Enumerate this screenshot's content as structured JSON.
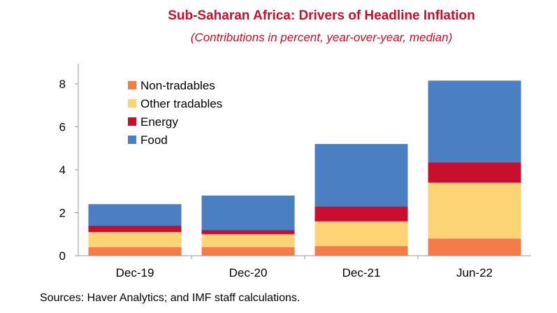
{
  "chart_data": {
    "type": "bar",
    "stacked": true,
    "title": "Sub-Saharan Africa: Drivers of Headline Inflation",
    "subtitle": "(Contributions in percent, year-over-year, median)",
    "categories": [
      "Dec-19",
      "Dec-20",
      "Dec-21",
      "Jun-22"
    ],
    "series": [
      {
        "name": "Non-tradables",
        "color": "#f47c48",
        "values": [
          0.4,
          0.4,
          0.45,
          0.8
        ]
      },
      {
        "name": "Other tradables",
        "color": "#fdd475",
        "values": [
          0.7,
          0.6,
          1.15,
          2.6
        ]
      },
      {
        "name": "Energy",
        "color": "#c8102e",
        "values": [
          0.3,
          0.2,
          0.7,
          0.95
        ]
      },
      {
        "name": "Food",
        "color": "#4a7fc1",
        "values": [
          1.0,
          1.6,
          2.9,
          3.8
        ]
      }
    ],
    "ylim": [
      0,
      9
    ],
    "yticks": [
      0,
      2,
      4,
      6,
      8
    ],
    "legend": "top-left",
    "grid": false
  },
  "source": "Sources: Haver Analytics; and IMF staff calculations."
}
